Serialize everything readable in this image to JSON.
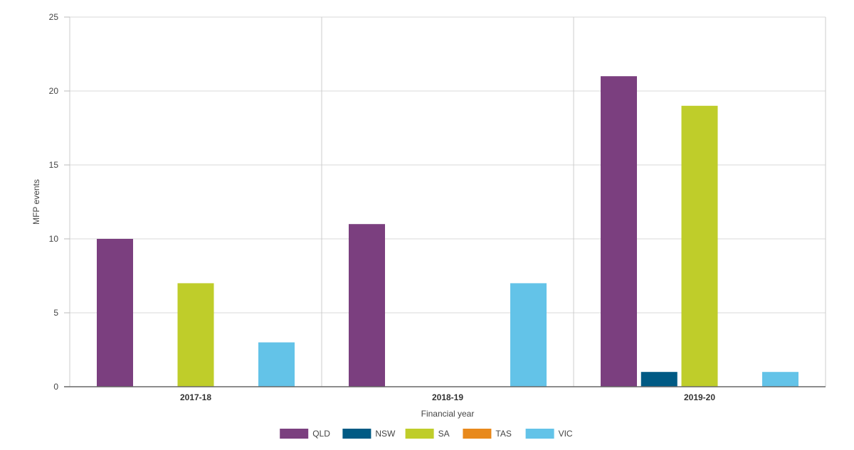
{
  "chart_data": {
    "type": "bar",
    "xlabel": "Financial year",
    "ylabel": "MFP events",
    "ylim": [
      0,
      25
    ],
    "yticks": [
      0,
      5,
      10,
      15,
      20,
      25
    ],
    "grid": true,
    "legend_position": "bottom",
    "categories": [
      "2017-18",
      "2018-19",
      "2019-20"
    ],
    "series": [
      {
        "name": "QLD",
        "color": "#7b3f7f",
        "values": [
          10,
          11,
          21
        ]
      },
      {
        "name": "NSW",
        "color": "#005a84",
        "values": [
          0,
          0,
          1
        ]
      },
      {
        "name": "SA",
        "color": "#bfcd2a",
        "values": [
          7,
          0,
          19
        ]
      },
      {
        "name": "TAS",
        "color": "#e8891c",
        "values": [
          0,
          0,
          0
        ]
      },
      {
        "name": "VIC",
        "color": "#63c3e8",
        "values": [
          3,
          7,
          1
        ]
      }
    ]
  }
}
